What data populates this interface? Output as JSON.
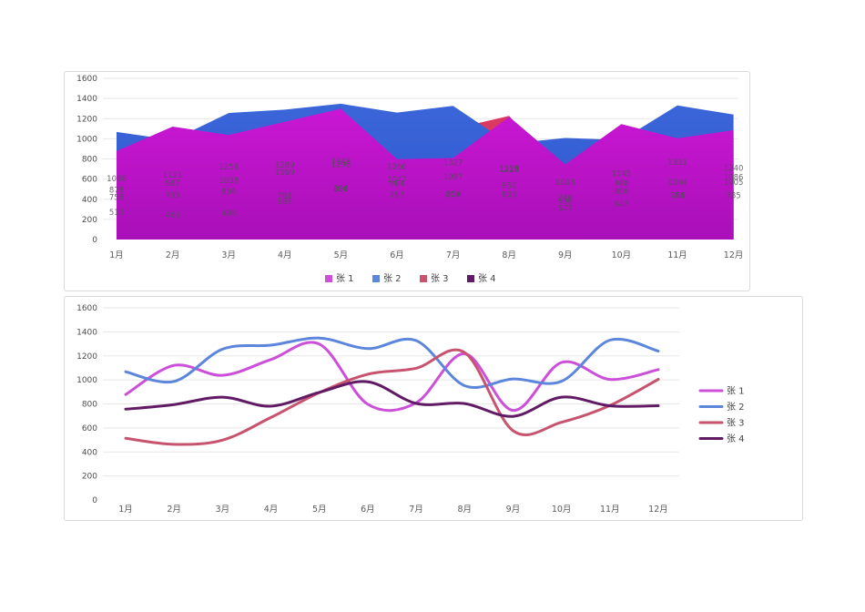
{
  "page": {
    "background": "#ffffff",
    "months": [
      "1月",
      "2月",
      "3月",
      "4月",
      "5月",
      "6月",
      "7月",
      "8月",
      "9月",
      "10月",
      "11月",
      "12月"
    ],
    "ytick_labels": [
      "0",
      "200",
      "400",
      "600",
      "800",
      "1000",
      "1200",
      "1400",
      "1600"
    ]
  },
  "legend": {
    "items": [
      {
        "label": "张 1",
        "color": "#cc4fd9"
      },
      {
        "label": "张 2",
        "color": "#5b86dc"
      },
      {
        "label": "张 3",
        "color": "#c7536e"
      },
      {
        "label": "张 4",
        "color": "#611b64"
      }
    ]
  },
  "chart_data": [
    {
      "type": "area",
      "title": "",
      "interpolation": "linear",
      "categories": [
        "1月",
        "2月",
        "3月",
        "4月",
        "5月",
        "6月",
        "7月",
        "8月",
        "9月",
        "10月",
        "11月",
        "12月"
      ],
      "series": [
        {
          "name": "张 1",
          "values": [
            878,
            1121,
            1038,
            1169,
            1298,
            797,
            809,
            1218,
            746,
            1145,
            1004,
            1086
          ],
          "line_color": "#cc4fd9",
          "area_top": "#c917d3",
          "area_bottom": "#a90fb8"
        },
        {
          "name": "张 2",
          "values": [
            1068,
            987,
            1256,
            1289,
            1348,
            1260,
            1327,
            952,
            1008,
            988,
            1331,
            1240
          ],
          "line_color": "#5b86dc",
          "area_top": "#3b66d9",
          "area_bottom": "#2e55ce"
        },
        {
          "name": "张 3",
          "values": [
            513,
            463,
            498,
            687,
            894,
            1047,
            1097,
            1228,
            577,
            647,
            786,
            1005
          ],
          "line_color": "#c7536e",
          "area_top": "#db3a60",
          "area_bottom": "#d23458"
        },
        {
          "name": "张 4",
          "values": [
            756,
            795,
            856,
            781,
            896,
            984,
            804,
            803,
            696,
            856,
            784,
            785
          ],
          "line_color": "#611b64",
          "area_top": "#5d1b64",
          "area_bottom": "#54185c"
        }
      ],
      "ylim": [
        0,
        1600
      ],
      "ytick_step": 200,
      "grid": true,
      "data_labels": true,
      "legend_position": "bottom"
    },
    {
      "type": "line",
      "title": "",
      "interpolation": "smooth",
      "categories": [
        "1月",
        "2月",
        "3月",
        "4月",
        "5月",
        "6月",
        "7月",
        "8月",
        "9月",
        "10月",
        "11月",
        "12月"
      ],
      "series": [
        {
          "name": "张 1",
          "values": [
            878,
            1121,
            1038,
            1169,
            1298,
            797,
            809,
            1218,
            746,
            1145,
            1004,
            1086
          ],
          "line_color": "#cc4fd9"
        },
        {
          "name": "张 2",
          "values": [
            1068,
            987,
            1256,
            1289,
            1348,
            1260,
            1327,
            952,
            1008,
            988,
            1331,
            1240
          ],
          "line_color": "#5b86dc"
        },
        {
          "name": "张 3",
          "values": [
            513,
            463,
            498,
            687,
            894,
            1047,
            1097,
            1228,
            577,
            647,
            786,
            1005
          ],
          "line_color": "#c7536e"
        },
        {
          "name": "张 4",
          "values": [
            756,
            795,
            856,
            781,
            896,
            984,
            804,
            803,
            696,
            856,
            784,
            785
          ],
          "line_color": "#611b64"
        }
      ],
      "ylim": [
        0,
        1600
      ],
      "ytick_step": 200,
      "grid": true,
      "data_labels": false,
      "legend_position": "right"
    }
  ]
}
